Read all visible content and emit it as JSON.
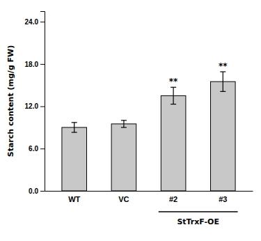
{
  "chart_data": {
    "type": "bar",
    "categories": [
      "WT",
      "VC",
      "#2",
      "#3"
    ],
    "values": [
      9.0,
      9.5,
      13.5,
      15.5
    ],
    "errors": [
      0.7,
      0.5,
      1.2,
      1.4
    ],
    "color": "#C8C8C8",
    "ylabel": "Starch content (mg/g FW)",
    "ylim": [
      0,
      25.5
    ],
    "yticks": [
      {
        "value": 0.0,
        "label": "0.0"
      },
      {
        "value": 6.0,
        "label": "6.0"
      },
      {
        "value": 12.0,
        "label": "12.0"
      },
      {
        "value": 18.0,
        "label": "18.0"
      },
      {
        "value": 24.0,
        "label": "24.0"
      }
    ],
    "annotations": [
      {
        "text": "**",
        "category": "#2"
      },
      {
        "text": "**",
        "category": "#3"
      },
      {
        "text": "StTrxF-OE",
        "categories": [
          "#2",
          "#3"
        ]
      }
    ]
  }
}
